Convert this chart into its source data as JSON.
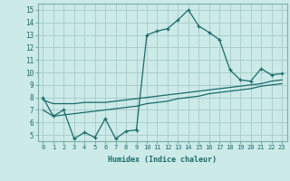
{
  "xlabel": "Humidex (Indice chaleur)",
  "bg_color": "#cceae8",
  "grid_color": "#aacfcc",
  "line_color": "#1a6b6b",
  "xlim": [
    -0.5,
    23.5
  ],
  "ylim": [
    4.5,
    15.5
  ],
  "yticks": [
    5,
    6,
    7,
    8,
    9,
    10,
    11,
    12,
    13,
    14,
    15
  ],
  "xticks": [
    0,
    1,
    2,
    3,
    4,
    5,
    6,
    7,
    8,
    9,
    10,
    11,
    12,
    13,
    14,
    15,
    16,
    17,
    18,
    19,
    20,
    21,
    22,
    23
  ],
  "line1_x": [
    0,
    1,
    2,
    3,
    4,
    5,
    6,
    7,
    8,
    9,
    10,
    11,
    12,
    13,
    14,
    15,
    16,
    17,
    18,
    19,
    20,
    21,
    22,
    23
  ],
  "line1_y": [
    8.0,
    6.5,
    7.0,
    4.7,
    5.2,
    4.8,
    6.3,
    4.7,
    5.3,
    5.4,
    13.0,
    13.3,
    13.5,
    14.2,
    15.0,
    13.7,
    13.2,
    12.6,
    10.2,
    9.4,
    9.3,
    10.3,
    9.8,
    9.9
  ],
  "line2_x": [
    0,
    1,
    2,
    3,
    4,
    5,
    6,
    7,
    8,
    9,
    10,
    11,
    12,
    13,
    14,
    15,
    16,
    17,
    18,
    19,
    20,
    21,
    22,
    23
  ],
  "line2_y": [
    7.8,
    7.5,
    7.5,
    7.5,
    7.6,
    7.6,
    7.6,
    7.7,
    7.8,
    7.9,
    8.0,
    8.1,
    8.2,
    8.3,
    8.4,
    8.5,
    8.6,
    8.7,
    8.8,
    8.9,
    9.0,
    9.1,
    9.3,
    9.4
  ],
  "line3_x": [
    0,
    1,
    2,
    3,
    4,
    5,
    6,
    7,
    8,
    9,
    10,
    11,
    12,
    13,
    14,
    15,
    16,
    17,
    18,
    19,
    20,
    21,
    22,
    23
  ],
  "line3_y": [
    7.0,
    6.5,
    6.6,
    6.7,
    6.8,
    6.9,
    7.0,
    7.1,
    7.2,
    7.3,
    7.5,
    7.6,
    7.7,
    7.9,
    8.0,
    8.1,
    8.3,
    8.4,
    8.5,
    8.6,
    8.7,
    8.9,
    9.0,
    9.1
  ]
}
